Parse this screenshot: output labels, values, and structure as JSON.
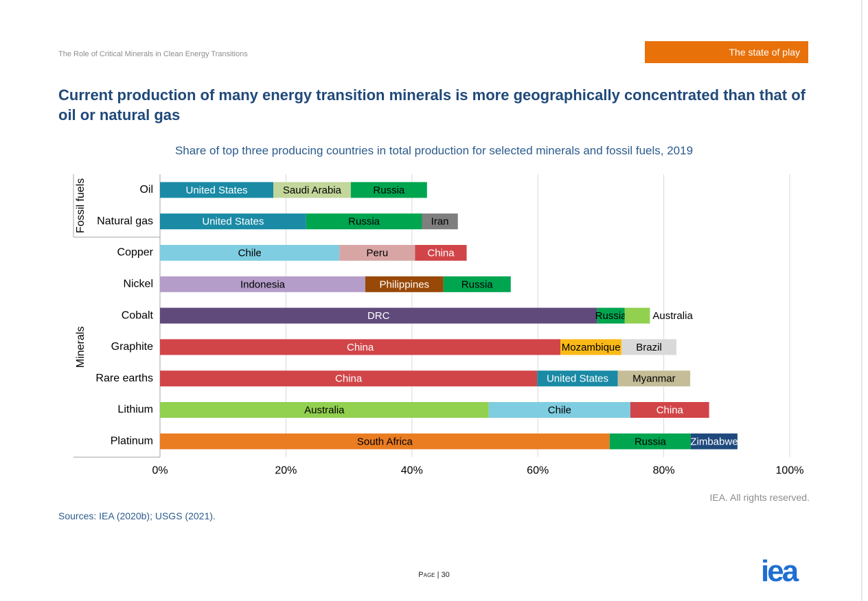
{
  "header": {
    "running_title": "The Role of Critical Minerals in Clean Energy Transitions",
    "badge": "The state of play"
  },
  "chart_data": {
    "type": "stacked-bar-horizontal",
    "title": "Current production of many energy transition minerals is more geographically concentrated than that of oil or natural gas",
    "subtitle": "Share of top three producing countries in total production for selected minerals and fossil fuels, 2019",
    "xlim": [
      0,
      100
    ],
    "xticks": [
      {
        "value": 0,
        "label": "0%"
      },
      {
        "value": 20,
        "label": "20%"
      },
      {
        "value": 40,
        "label": "40%"
      },
      {
        "value": 60,
        "label": "60%"
      },
      {
        "value": 80,
        "label": "80%"
      },
      {
        "value": 100,
        "label": "100%"
      }
    ],
    "grid": true,
    "groups": [
      {
        "label": "Fossil fuels",
        "bars": [
          {
            "category": "Oil",
            "segments": [
              {
                "label": "United States",
                "color": "#1a8aa5",
                "text_color": "#ffffff",
                "value": 18.0
              },
              {
                "label": "Saudi Arabia",
                "color": "#c3d69b",
                "text_color": "#000000",
                "value": 12.3
              },
              {
                "label": "Russia",
                "color": "#00a550",
                "text_color": "#000000",
                "value": 12.1
              }
            ]
          },
          {
            "category": "Natural gas",
            "segments": [
              {
                "label": "United States",
                "color": "#1a8aa5",
                "text_color": "#ffffff",
                "value": 23.2
              },
              {
                "label": "Russia",
                "color": "#00a550",
                "text_color": "#000000",
                "value": 18.4
              },
              {
                "label": "Iran",
                "color": "#7f7f7f",
                "text_color": "#000000",
                "value": 5.7
              }
            ]
          }
        ]
      },
      {
        "label": "Minerals",
        "bars": [
          {
            "category": "Copper",
            "segments": [
              {
                "label": "Chile",
                "color": "#7fcde0",
                "text_color": "#000000",
                "value": 28.5
              },
              {
                "label": "Peru",
                "color": "#d8a5a5",
                "text_color": "#000000",
                "value": 12.0
              },
              {
                "label": "China",
                "color": "#d14548",
                "text_color": "#ffffff",
                "value": 8.2
              }
            ]
          },
          {
            "category": "Nickel",
            "segments": [
              {
                "label": "Indonesia",
                "color": "#b59dca",
                "text_color": "#000000",
                "value": 32.6
              },
              {
                "label": "Philippines",
                "color": "#984807",
                "text_color": "#ffffff",
                "value": 12.4
              },
              {
                "label": "Russia",
                "color": "#00a550",
                "text_color": "#000000",
                "value": 10.7
              }
            ]
          },
          {
            "category": "Cobalt",
            "segments": [
              {
                "label": "DRC",
                "color": "#604a7b",
                "text_color": "#ffffff",
                "value": 69.4
              },
              {
                "label": "Russia",
                "color": "#00a550",
                "text_color": "#000000",
                "value": 4.4
              },
              {
                "label": "Australia",
                "color": "#92d050",
                "text_color": "#000000",
                "value": 4.0
              }
            ]
          },
          {
            "category": "Graphite",
            "segments": [
              {
                "label": "China",
                "color": "#d14548",
                "text_color": "#ffffff",
                "value": 63.6
              },
              {
                "label": "Mozambique",
                "color": "#fbb917",
                "text_color": "#000000",
                "value": 9.7
              },
              {
                "label": "Brazil",
                "color": "#d9d9d9",
                "text_color": "#000000",
                "value": 8.7
              }
            ]
          },
          {
            "category": "Rare earths",
            "segments": [
              {
                "label": "China",
                "color": "#d14548",
                "text_color": "#ffffff",
                "value": 59.9
              },
              {
                "label": "United States",
                "color": "#1a8aa5",
                "text_color": "#ffffff",
                "value": 12.8
              },
              {
                "label": "Myanmar",
                "color": "#c4bd97",
                "text_color": "#000000",
                "value": 11.5
              }
            ]
          },
          {
            "category": "Lithium",
            "segments": [
              {
                "label": "Australia",
                "color": "#92d050",
                "text_color": "#000000",
                "value": 52.2
              },
              {
                "label": "Chile",
                "color": "#7fcde0",
                "text_color": "#000000",
                "value": 22.5
              },
              {
                "label": "China",
                "color": "#d14548",
                "text_color": "#ffffff",
                "value": 12.5
              }
            ]
          },
          {
            "category": "Platinum",
            "segments": [
              {
                "label": "South Africa",
                "color": "#ea7d22",
                "text_color": "#000000",
                "value": 71.4
              },
              {
                "label": "Russia",
                "color": "#00a550",
                "text_color": "#000000",
                "value": 12.9
              },
              {
                "label": "Zimbabwe",
                "color": "#1f497d",
                "text_color": "#ffffff",
                "value": 7.4
              }
            ]
          }
        ]
      }
    ],
    "credit": "IEA. All rights reserved."
  },
  "footer": {
    "sources": "Sources: IEA (2020b); USGS (2021).",
    "page": "Page | 30",
    "logo": "iea"
  }
}
